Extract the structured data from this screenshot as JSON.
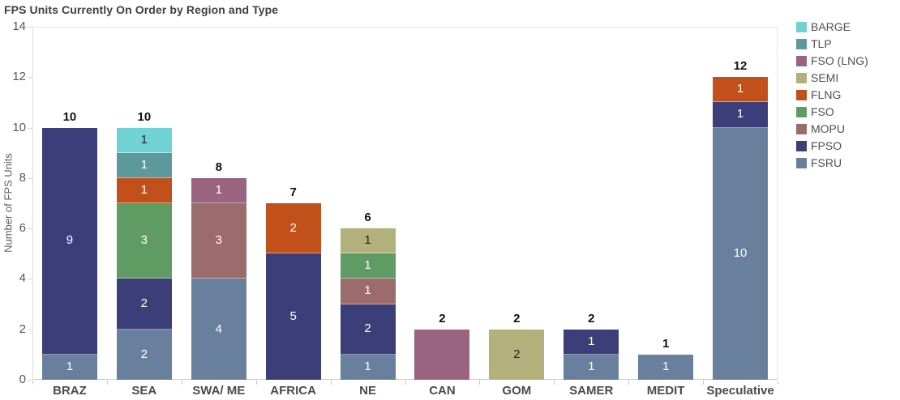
{
  "chart_data": {
    "type": "bar",
    "stacked": true,
    "title": "FPS Units Currently On Order by Region and Type",
    "xlabel": "",
    "ylabel": "Number of FPS Units",
    "ylim": [
      0,
      14
    ],
    "yticks": [
      0,
      2,
      4,
      6,
      8,
      10,
      12,
      14
    ],
    "grid": "off",
    "legend_position": "top-right",
    "legend": [
      {
        "name": "BARGE",
        "color": "#6fd2d4",
        "label_color": "#222222"
      },
      {
        "name": "TLP",
        "color": "#5d999c",
        "label_color": "#ffffff"
      },
      {
        "name": "FSO (LNG)",
        "color": "#9a6380",
        "label_color": "#ffffff"
      },
      {
        "name": "SEMI",
        "color": "#b3b17b",
        "label_color": "#222222"
      },
      {
        "name": "FLNG",
        "color": "#c1501a",
        "label_color": "#ffffff"
      },
      {
        "name": "FSO",
        "color": "#5f9c63",
        "label_color": "#ffffff"
      },
      {
        "name": "MOPU",
        "color": "#9c6b6b",
        "label_color": "#ffffff"
      },
      {
        "name": "FPSO",
        "color": "#3b3e78",
        "label_color": "#ffffff"
      },
      {
        "name": "FSRU",
        "color": "#68809e",
        "label_color": "#ffffff"
      }
    ],
    "categories": [
      "BRAZ",
      "SEA",
      "SWA/ ME",
      "AFRICA",
      "NE",
      "CAN",
      "GOM",
      "SAMER",
      "MEDIT",
      "Speculative"
    ],
    "bars": [
      {
        "category": "BRAZ",
        "total": 10,
        "total_label": "10",
        "segments": [
          {
            "type": "FSRU",
            "value": 1,
            "label": "1"
          },
          {
            "type": "FPSO",
            "value": 9,
            "label": "9"
          }
        ]
      },
      {
        "category": "SEA",
        "total": 10,
        "total_label": "10",
        "segments": [
          {
            "type": "FSRU",
            "value": 2,
            "label": "2"
          },
          {
            "type": "FPSO",
            "value": 2,
            "label": "2"
          },
          {
            "type": "FSO",
            "value": 3,
            "label": "3"
          },
          {
            "type": "FLNG",
            "value": 1,
            "label": "1"
          },
          {
            "type": "TLP",
            "value": 1,
            "label": "1"
          },
          {
            "type": "BARGE",
            "value": 1,
            "label": "1"
          }
        ]
      },
      {
        "category": "SWA/ ME",
        "total": 8,
        "total_label": "8",
        "segments": [
          {
            "type": "FSRU",
            "value": 4,
            "label": "4"
          },
          {
            "type": "MOPU",
            "value": 3,
            "label": "3"
          },
          {
            "type": "FSO (LNG)",
            "value": 1,
            "label": "1"
          }
        ]
      },
      {
        "category": "AFRICA",
        "total": 7,
        "total_label": "7",
        "segments": [
          {
            "type": "FPSO",
            "value": 5,
            "label": "5"
          },
          {
            "type": "FLNG",
            "value": 2,
            "label": "2"
          }
        ]
      },
      {
        "category": "NE",
        "total": 6,
        "total_label": "6",
        "segments": [
          {
            "type": "FSRU",
            "value": 1,
            "label": "1"
          },
          {
            "type": "FPSO",
            "value": 2,
            "label": "2"
          },
          {
            "type": "MOPU",
            "value": 1,
            "label": "1"
          },
          {
            "type": "FSO",
            "value": 1,
            "label": "1"
          },
          {
            "type": "SEMI",
            "value": 1,
            "label": "1"
          }
        ]
      },
      {
        "category": "CAN",
        "total": 2,
        "total_label": "2",
        "segments": [
          {
            "type": "FSO (LNG)",
            "value": 2,
            "label": ""
          }
        ]
      },
      {
        "category": "GOM",
        "total": 2,
        "total_label": "2",
        "segments": [
          {
            "type": "SEMI",
            "value": 2,
            "label": "2"
          }
        ]
      },
      {
        "category": "SAMER",
        "total": 2,
        "total_label": "2",
        "segments": [
          {
            "type": "FSRU",
            "value": 1,
            "label": "1"
          },
          {
            "type": "FPSO",
            "value": 1,
            "label": "1"
          }
        ]
      },
      {
        "category": "MEDIT",
        "total": 1,
        "total_label": "1",
        "segments": [
          {
            "type": "FSRU",
            "value": 1,
            "label": "1"
          }
        ]
      },
      {
        "category": "Speculative",
        "total": 12,
        "total_label": "12",
        "segments": [
          {
            "type": "FSRU",
            "value": 10,
            "label": "10"
          },
          {
            "type": "FPSO",
            "value": 1,
            "label": "1"
          },
          {
            "type": "FLNG",
            "value": 1,
            "label": "1"
          }
        ]
      }
    ]
  }
}
